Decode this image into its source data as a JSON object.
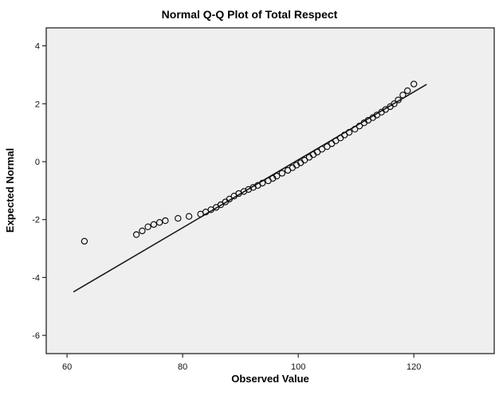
{
  "chart_data": {
    "type": "scatter",
    "title": "Normal Q-Q Plot of Total Respect",
    "xlabel": "Observed Value",
    "ylabel": "Expected Normal",
    "xlim": [
      56.4,
      133.9
    ],
    "ylim": [
      -6.63,
      4.62
    ],
    "xticks": [
      60,
      80,
      100,
      120
    ],
    "yticks": [
      4,
      2,
      0,
      -2,
      -4,
      -6
    ],
    "grid": false,
    "legend": false,
    "plot_bg": "#EFEFEF",
    "frame_color": "#262626",
    "point_color": "#0a0a0a",
    "line_color": "#1a1a1a",
    "fit_line": {
      "x": [
        61.1,
        122.2
      ],
      "y": [
        -4.5,
        2.67
      ]
    },
    "points": [
      [
        63.0,
        -2.75
      ],
      [
        72.0,
        -2.52
      ],
      [
        73.0,
        -2.39
      ],
      [
        74.0,
        -2.25
      ],
      [
        75.0,
        -2.17
      ],
      [
        76.0,
        -2.1
      ],
      [
        77.0,
        -2.04
      ],
      [
        79.2,
        -1.96
      ],
      [
        81.1,
        -1.89
      ],
      [
        83.1,
        -1.81
      ],
      [
        84.0,
        -1.74
      ],
      [
        84.9,
        -1.66
      ],
      [
        85.8,
        -1.58
      ],
      [
        86.6,
        -1.49
      ],
      [
        87.4,
        -1.39
      ],
      [
        88.1,
        -1.29
      ],
      [
        88.9,
        -1.19
      ],
      [
        89.7,
        -1.1
      ],
      [
        90.6,
        -1.03
      ],
      [
        91.4,
        -0.96
      ],
      [
        92.2,
        -0.89
      ],
      [
        93.0,
        -0.82
      ],
      [
        93.8,
        -0.74
      ],
      [
        94.8,
        -0.66
      ],
      [
        95.6,
        -0.58
      ],
      [
        96.3,
        -0.5
      ],
      [
        97.2,
        -0.4
      ],
      [
        98.2,
        -0.3
      ],
      [
        99.0,
        -0.21
      ],
      [
        99.7,
        -0.12
      ],
      [
        100.4,
        -0.04
      ],
      [
        101.1,
        0.05
      ],
      [
        101.9,
        0.15
      ],
      [
        102.6,
        0.24
      ],
      [
        103.3,
        0.33
      ],
      [
        104.1,
        0.43
      ],
      [
        105.0,
        0.52
      ],
      [
        105.8,
        0.62
      ],
      [
        106.5,
        0.72
      ],
      [
        107.3,
        0.82
      ],
      [
        108.0,
        0.92
      ],
      [
        108.8,
        1.01
      ],
      [
        109.8,
        1.12
      ],
      [
        110.6,
        1.23
      ],
      [
        111.4,
        1.34
      ],
      [
        112.1,
        1.43
      ],
      [
        112.9,
        1.52
      ],
      [
        113.6,
        1.61
      ],
      [
        114.4,
        1.71
      ],
      [
        115.1,
        1.8
      ],
      [
        115.9,
        1.9
      ],
      [
        116.6,
        2.0
      ],
      [
        117.3,
        2.13
      ],
      [
        118.1,
        2.3
      ],
      [
        118.9,
        2.45
      ],
      [
        120.0,
        2.68
      ]
    ]
  }
}
